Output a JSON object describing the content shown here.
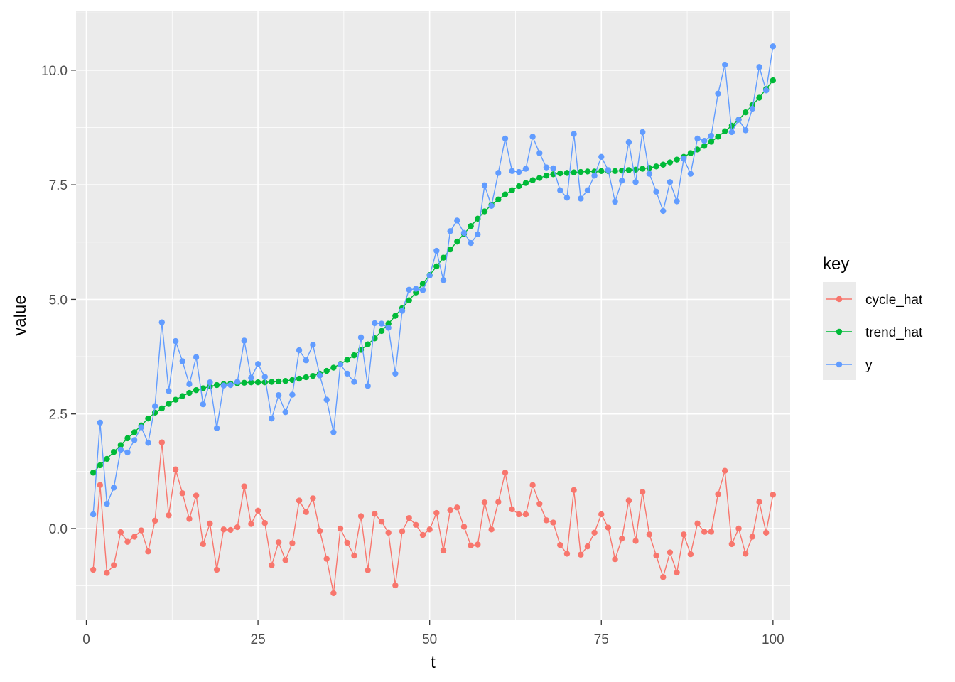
{
  "chart_data": {
    "type": "line",
    "xlabel": "t",
    "ylabel": "value",
    "xlim": [
      -1.5,
      102.5
    ],
    "ylim": [
      -2.0,
      11.3
    ],
    "x_ticks": [
      0,
      25,
      50,
      75,
      100
    ],
    "x_tick_labels": [
      "0",
      "25",
      "50",
      "75",
      "100"
    ],
    "y_ticks": [
      0.0,
      2.5,
      5.0,
      7.5,
      10.0
    ],
    "y_tick_labels": [
      "0.0",
      "2.5",
      "5.0",
      "7.5",
      "10.0"
    ],
    "grid": true,
    "legend": {
      "title": "key",
      "placement": "right"
    },
    "x": [
      1,
      2,
      3,
      4,
      5,
      6,
      7,
      8,
      9,
      10,
      11,
      12,
      13,
      14,
      15,
      16,
      17,
      18,
      19,
      20,
      21,
      22,
      23,
      24,
      25,
      26,
      27,
      28,
      29,
      30,
      31,
      32,
      33,
      34,
      35,
      36,
      37,
      38,
      39,
      40,
      41,
      42,
      43,
      44,
      45,
      46,
      47,
      48,
      49,
      50,
      51,
      52,
      53,
      54,
      55,
      56,
      57,
      58,
      59,
      60,
      61,
      62,
      63,
      64,
      65,
      66,
      67,
      68,
      69,
      70,
      71,
      72,
      73,
      74,
      75,
      76,
      77,
      78,
      79,
      80,
      81,
      82,
      83,
      84,
      85,
      86,
      87,
      88,
      89,
      90,
      91,
      92,
      93,
      94,
      95,
      96,
      97,
      98,
      99,
      100
    ],
    "series": [
      {
        "name": "cycle_hat",
        "color": "#F8766D",
        "values": [
          -0.9,
          0.95,
          -0.97,
          -0.8,
          -0.08,
          -0.29,
          -0.18,
          -0.04,
          -0.5,
          0.17,
          1.88,
          0.29,
          1.29,
          0.77,
          0.21,
          0.72,
          -0.34,
          0.11,
          -0.9,
          -0.02,
          -0.03,
          0.03,
          0.92,
          0.1,
          0.39,
          0.12,
          -0.8,
          -0.3,
          -0.69,
          -0.32,
          0.61,
          0.36,
          0.66,
          -0.05,
          -0.66,
          -1.41,
          0.0,
          -0.31,
          -0.59,
          0.27,
          -0.91,
          0.32,
          0.15,
          -0.09,
          -1.24,
          -0.06,
          0.23,
          0.08,
          -0.14,
          -0.02,
          0.34,
          -0.48,
          0.4,
          0.46,
          0.04,
          -0.37,
          -0.35,
          0.57,
          -0.02,
          0.58,
          1.22,
          0.42,
          0.31,
          0.31,
          0.95,
          0.54,
          0.18,
          0.13,
          -0.36,
          -0.55,
          0.84,
          -0.57,
          -0.39,
          -0.09,
          0.31,
          0.02,
          -0.67,
          -0.22,
          0.61,
          -0.27,
          0.8,
          -0.13,
          -0.59,
          -1.06,
          -0.52,
          -0.96,
          -0.13,
          -0.56,
          0.11,
          -0.07,
          -0.07,
          0.75,
          1.26,
          -0.34,
          0.0,
          -0.55,
          -0.18,
          0.58,
          -0.09,
          0.74
        ]
      },
      {
        "name": "trend_hat",
        "color": "#00BA38",
        "values": [
          1.22,
          1.38,
          1.52,
          1.67,
          1.82,
          1.97,
          2.1,
          2.25,
          2.4,
          2.53,
          2.62,
          2.72,
          2.81,
          2.89,
          2.96,
          3.02,
          3.06,
          3.1,
          3.13,
          3.15,
          3.16,
          3.17,
          3.18,
          3.19,
          3.19,
          3.19,
          3.2,
          3.21,
          3.22,
          3.24,
          3.27,
          3.3,
          3.33,
          3.38,
          3.44,
          3.51,
          3.59,
          3.68,
          3.78,
          3.9,
          4.02,
          4.15,
          4.31,
          4.47,
          4.64,
          4.81,
          4.98,
          5.15,
          5.34,
          5.53,
          5.72,
          5.91,
          6.09,
          6.26,
          6.43,
          6.6,
          6.76,
          6.92,
          7.06,
          7.18,
          7.29,
          7.38,
          7.47,
          7.54,
          7.6,
          7.65,
          7.7,
          7.73,
          7.75,
          7.76,
          7.77,
          7.78,
          7.79,
          7.79,
          7.8,
          7.8,
          7.8,
          7.81,
          7.82,
          7.83,
          7.85,
          7.87,
          7.9,
          7.94,
          7.99,
          8.05,
          8.11,
          8.19,
          8.27,
          8.35,
          8.44,
          8.55,
          8.67,
          8.79,
          8.92,
          9.08,
          9.24,
          9.4,
          9.59,
          9.78
        ]
      },
      {
        "name": "y",
        "color": "#619CFF",
        "values": [
          0.31,
          2.31,
          0.54,
          0.89,
          1.72,
          1.66,
          1.93,
          2.21,
          1.87,
          2.67,
          4.5,
          3.0,
          4.09,
          3.65,
          3.15,
          3.74,
          2.71,
          3.19,
          2.19,
          3.12,
          3.13,
          3.2,
          4.1,
          3.29,
          3.59,
          3.31,
          2.4,
          2.91,
          2.54,
          2.92,
          3.89,
          3.67,
          4.01,
          3.34,
          2.81,
          2.1,
          3.58,
          3.38,
          3.2,
          4.17,
          3.11,
          4.48,
          4.47,
          4.38,
          3.38,
          4.75,
          5.21,
          5.23,
          5.2,
          5.52,
          6.06,
          5.42,
          6.49,
          6.72,
          6.45,
          6.23,
          6.42,
          7.49,
          7.04,
          7.76,
          8.51,
          7.8,
          7.78,
          7.85,
          8.55,
          8.19,
          7.88,
          7.86,
          7.38,
          7.22,
          8.61,
          7.2,
          7.38,
          7.7,
          8.11,
          7.82,
          7.13,
          7.59,
          8.43,
          7.56,
          8.65,
          7.74,
          7.35,
          6.93,
          7.56,
          7.14,
          8.07,
          7.74,
          8.51,
          8.46,
          8.57,
          9.49,
          10.12,
          8.65,
          8.92,
          8.69,
          9.16,
          10.07,
          9.56,
          10.52
        ]
      }
    ]
  }
}
